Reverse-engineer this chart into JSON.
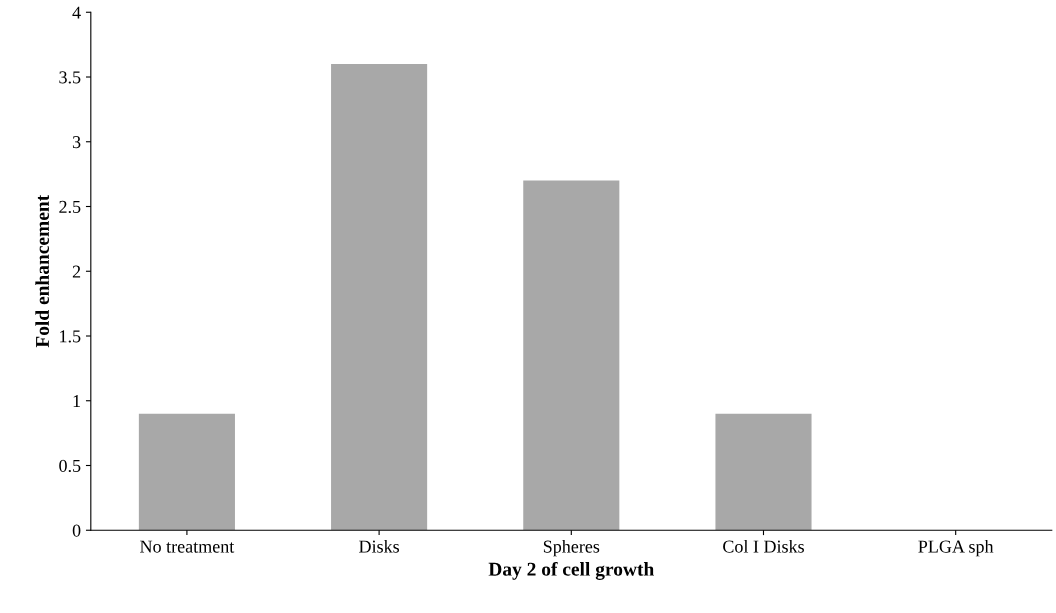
{
  "chart_data": {
    "type": "bar",
    "xlabel": "Day 2 of cell growth",
    "ylabel": "Fold enhancement",
    "categories": [
      "No treatment",
      "Disks",
      "Spheres",
      "Col I Disks",
      "PLGA sph"
    ],
    "values": [
      0.9,
      3.6,
      2.7,
      0.9,
      0
    ],
    "color": "#a8a8a8",
    "ylim": [
      0,
      4
    ],
    "yticks": [
      0,
      0.5,
      1,
      1.5,
      2,
      2.5,
      3,
      3.5,
      4
    ],
    "grid": false
  }
}
